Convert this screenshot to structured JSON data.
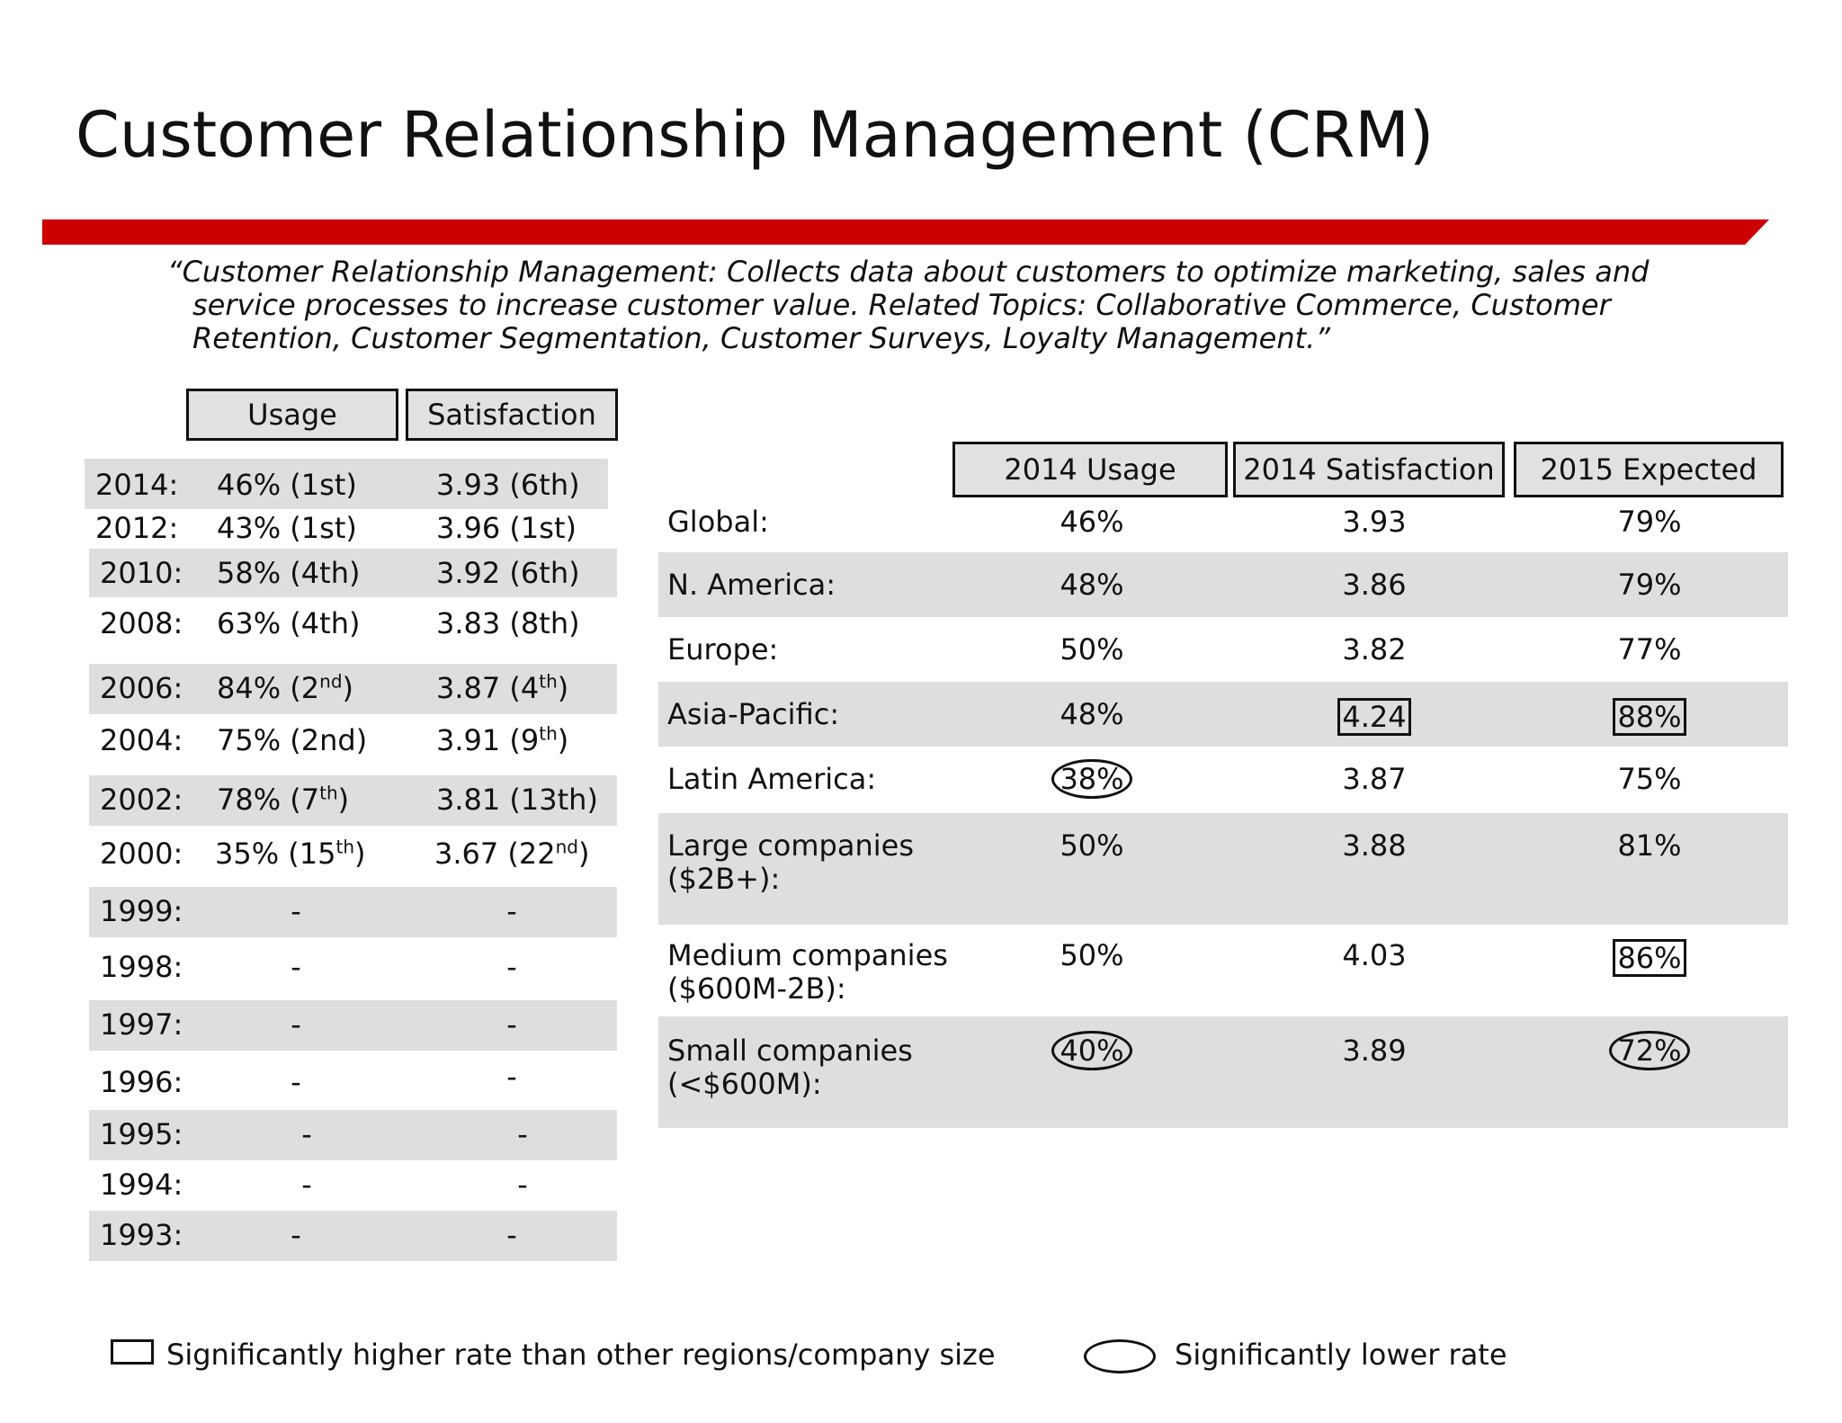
{
  "title": "Customer Relationship Management (CRM)",
  "quote": {
    "line1": "“Customer Relationship Management: Collects data about customers to optimize marketing, sales and",
    "line2": "service processes to increase customer value.  Related Topics: Collaborative Commerce, Customer",
    "line3": "Retention, Customer Segmentation, Customer Surveys, Loyalty Management.”"
  },
  "history": {
    "headers": {
      "usage": "Usage",
      "satisfaction": "Satisfaction"
    },
    "rows": [
      {
        "year": "2014:",
        "usage": "46% (1st)",
        "satisfaction": "3.93 (6th)"
      },
      {
        "year": "2012:",
        "usage": "43% (1st)",
        "satisfaction": "3.96 (1st)"
      },
      {
        "year": "2010:",
        "usage": "58% (4th)",
        "satisfaction": "3.92 (6th)"
      },
      {
        "year": "2008:",
        "usage": "63% (4th)",
        "satisfaction": "3.83 (8th)"
      },
      {
        "year": "2006:",
        "usage_val": "84% (2",
        "usage_sup": "nd",
        "usage_end": ")",
        "sat_val": "3.87 (4",
        "sat_sup": "th",
        "sat_end": ")"
      },
      {
        "year": "2004:",
        "usage": "75% (2nd)",
        "sat_val": "3.91 (9",
        "sat_sup": "th",
        "sat_end": ")"
      },
      {
        "year": "2002:",
        "usage_val": "78% (7",
        "usage_sup": "th",
        "usage_end": ")",
        "satisfaction": "3.81 (13th)"
      },
      {
        "year": "2000:",
        "usage_val": "35% (15",
        "usage_sup": "th",
        "usage_end": ")",
        "sat_val": "3.67 (22",
        "sat_sup": "nd",
        "sat_end": ")"
      },
      {
        "year": "1999:",
        "usage": "-",
        "satisfaction": "-"
      },
      {
        "year": "1998:",
        "usage": "-",
        "satisfaction": "-"
      },
      {
        "year": "1997:",
        "usage": "-",
        "satisfaction": "-"
      },
      {
        "year": "1996:",
        "usage": "-",
        "satisfaction": "-"
      },
      {
        "year": "1995:",
        "usage": "-",
        "satisfaction": "-"
      },
      {
        "year": "1994:",
        "usage": "-",
        "satisfaction": "-"
      },
      {
        "year": "1993:",
        "usage": "-",
        "satisfaction": "-"
      }
    ]
  },
  "segments": {
    "headers": {
      "usage": "2014 Usage",
      "satisfaction": "2014 Satisfaction",
      "expected": "2015 Expected"
    },
    "rows": [
      {
        "region": "Global:",
        "usage": "46%",
        "satisfaction": "3.93",
        "expected": "79%"
      },
      {
        "region": "N. America:",
        "usage": "48%",
        "satisfaction": "3.86",
        "expected": "79%"
      },
      {
        "region": "Europe:",
        "usage": "50%",
        "satisfaction": "3.82",
        "expected": "77%"
      },
      {
        "region": "Asia-Pacific:",
        "usage": "48%",
        "satisfaction": "4.24",
        "expected": "88%"
      },
      {
        "region": "Latin America:",
        "usage": "38%",
        "satisfaction": "3.87",
        "expected": "75%"
      },
      {
        "region_l1": "Large companies",
        "region_l2": "($2B+):",
        "usage": "50%",
        "satisfaction": "3.88",
        "expected": "81%"
      },
      {
        "region_l1": "Medium companies",
        "region_l2": "($600M-2B):",
        "usage": "50%",
        "satisfaction": "4.03",
        "expected": "86%"
      },
      {
        "region_l1": "Small companies",
        "region_l2": "(<$600M):",
        "usage": "40%",
        "satisfaction": "3.89",
        "expected": "72%"
      }
    ]
  },
  "legend": {
    "higher": "Significantly higher rate than other regions/company size",
    "lower": "Significantly lower rate"
  },
  "colors": {
    "accent": "#cc0000",
    "shade": "#dedee0"
  }
}
